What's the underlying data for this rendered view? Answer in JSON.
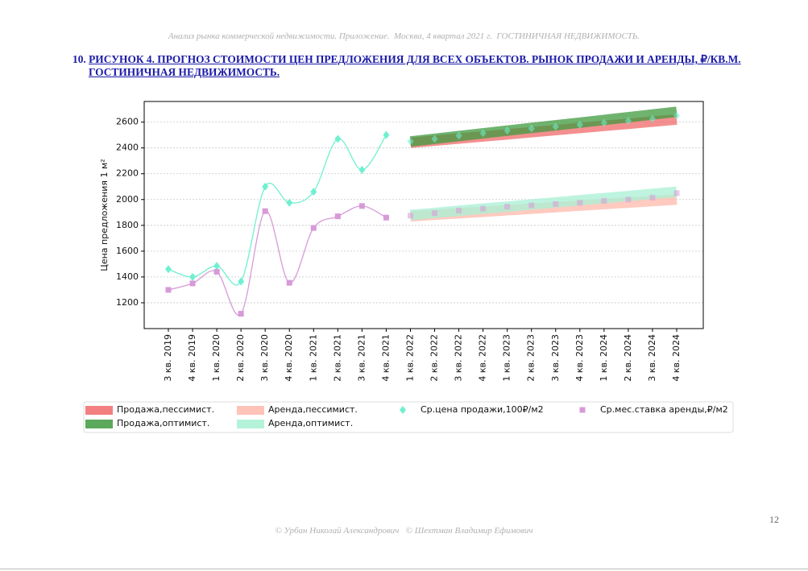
{
  "header": "Анализ рынка коммерческой недвижимости. Приложение.  Москва, 4 квартал 2021 г.  ГОСТИНИЧНАЯ НЕДВИЖИМОСТЬ.",
  "figure": {
    "number": "10.",
    "title": "РИСУНОК 4. ПРОГНОЗ СТОИМОСТИ ЦЕН ПРЕДЛОЖЕНИЯ ДЛЯ ВСЕХ ОБЪЕКТОВ. РЫНОК ПРОДАЖИ И АРЕНДЫ, ₽/КВ.М. ГОСТИНИЧНАЯ НЕДВИЖИМОСТЬ."
  },
  "chart_data": {
    "type": "line",
    "y_label": "Цена предложения 1 м²",
    "categories": [
      "3 кв. 2019",
      "4 кв. 2019",
      "1 кв. 2020",
      "2 кв. 2020",
      "3 кв. 2020",
      "4 кв. 2020",
      "1 кв. 2021",
      "2 кв. 2021",
      "3 кв. 2021",
      "4 кв. 2021",
      "1 кв. 2022",
      "2 кв. 2022",
      "3 кв. 2022",
      "4 кв. 2022",
      "1 кв. 2023",
      "2 кв. 2023",
      "3 кв. 2023",
      "4 кв. 2023",
      "1 кв. 2024",
      "2 кв. 2024",
      "3 кв. 2024",
      "4 кв. 2024"
    ],
    "ylim": [
      1000,
      2760
    ],
    "yticks": [
      1200,
      1400,
      1600,
      1800,
      2000,
      2200,
      2400,
      2600
    ],
    "grid": true,
    "series": [
      {
        "name": "Продажа,пессимист.",
        "color": "#f06a6a",
        "style": "band",
        "values": [
          null,
          null,
          null,
          null,
          null,
          null,
          null,
          null,
          null,
          null,
          2440,
          2456,
          2473,
          2489,
          2505,
          2522,
          2538,
          2555,
          2571,
          2587,
          2604,
          2620
        ]
      },
      {
        "name": "Продажа,оптимист.",
        "color": "#3f9a3f",
        "style": "band",
        "values": [
          null,
          null,
          null,
          null,
          null,
          null,
          null,
          null,
          null,
          null,
          2450,
          2471,
          2492,
          2513,
          2534,
          2555,
          2575,
          2596,
          2617,
          2638,
          2659,
          2680
        ]
      },
      {
        "name": "Аренда,пессимист.",
        "color": "#ffb8aa",
        "style": "band",
        "values": [
          null,
          null,
          null,
          null,
          null,
          null,
          null,
          null,
          null,
          null,
          1870,
          1882,
          1894,
          1905,
          1917,
          1929,
          1941,
          1953,
          1965,
          1976,
          1988,
          2000
        ]
      },
      {
        "name": "Аренда,оптимист.",
        "color": "#a8f0d4",
        "style": "band",
        "values": [
          null,
          null,
          null,
          null,
          null,
          null,
          null,
          null,
          null,
          null,
          1880,
          1896,
          1913,
          1929,
          1945,
          1962,
          1978,
          1995,
          2011,
          2027,
          2044,
          2060
        ]
      },
      {
        "name": "Ср.цена продажи,100₽/м2",
        "color": "#6ff0d0",
        "style": "diamond",
        "values": [
          1460,
          1400,
          1485,
          1365,
          2100,
          1975,
          2060,
          2470,
          2230,
          2500,
          2450,
          2470,
          2495,
          2515,
          2535,
          2550,
          2565,
          2580,
          2595,
          2610,
          2625,
          2650
        ]
      },
      {
        "name": "Ср.мес.ставка аренды,₽/м2",
        "color": "#d79ad9",
        "style": "square",
        "values": [
          1300,
          1350,
          1440,
          1115,
          1910,
          1355,
          1780,
          1870,
          1950,
          1860,
          1875,
          1895,
          1915,
          1930,
          1945,
          1955,
          1965,
          1975,
          1990,
          2000,
          2015,
          2050
        ]
      }
    ]
  },
  "footer": "© Урбан Николай Александрович   © Шехтман Владимир Ефимович",
  "page_number": 12
}
